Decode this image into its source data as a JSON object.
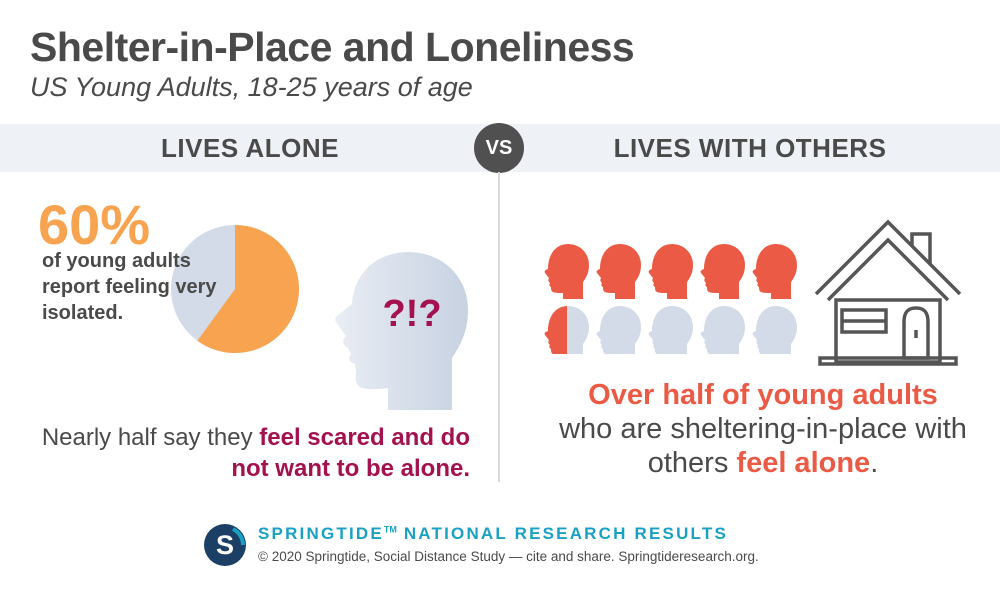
{
  "header": {
    "title": "Shelter-in-Place and Loneliness",
    "subtitle": "US Young Adults, 18-25 years of age"
  },
  "band": {
    "left_label": "LIVES ALONE",
    "vs_label": "VS",
    "right_label": "LIVES WITH OTHERS"
  },
  "left": {
    "percent": "60%",
    "percent_value": 60,
    "percent_text": "of young adults report feeling very isolated.",
    "head_text": "?!?",
    "scared_plain": "Nearly half say they ",
    "scared_emph": "feel scared and do not want to be alone."
  },
  "right": {
    "heads_total": 10,
    "heads_highlighted": 5.5,
    "alone_emph1": "Over half of young adults",
    "alone_plain": "who are sheltering-in-place with others ",
    "alone_emph2": "feel alone",
    "alone_end": "."
  },
  "footer": {
    "logo_letter": "S",
    "title": "SPRINGTIDE",
    "tm": "TM",
    "title_rest": " NATIONAL RESEARCH RESULTS",
    "sub": "© 2020 Springtide, Social Distance Study — cite and share. Springtideresearch.org."
  },
  "colors": {
    "orange": "#f7a350",
    "pie_gray": "#d3dbe8",
    "maroon": "#a3114f",
    "red": "#ea5a45",
    "head_gray": "#d3dbe8",
    "teal": "#1aa0c3",
    "navy": "#1c3f66",
    "text": "#4a4a4a"
  }
}
